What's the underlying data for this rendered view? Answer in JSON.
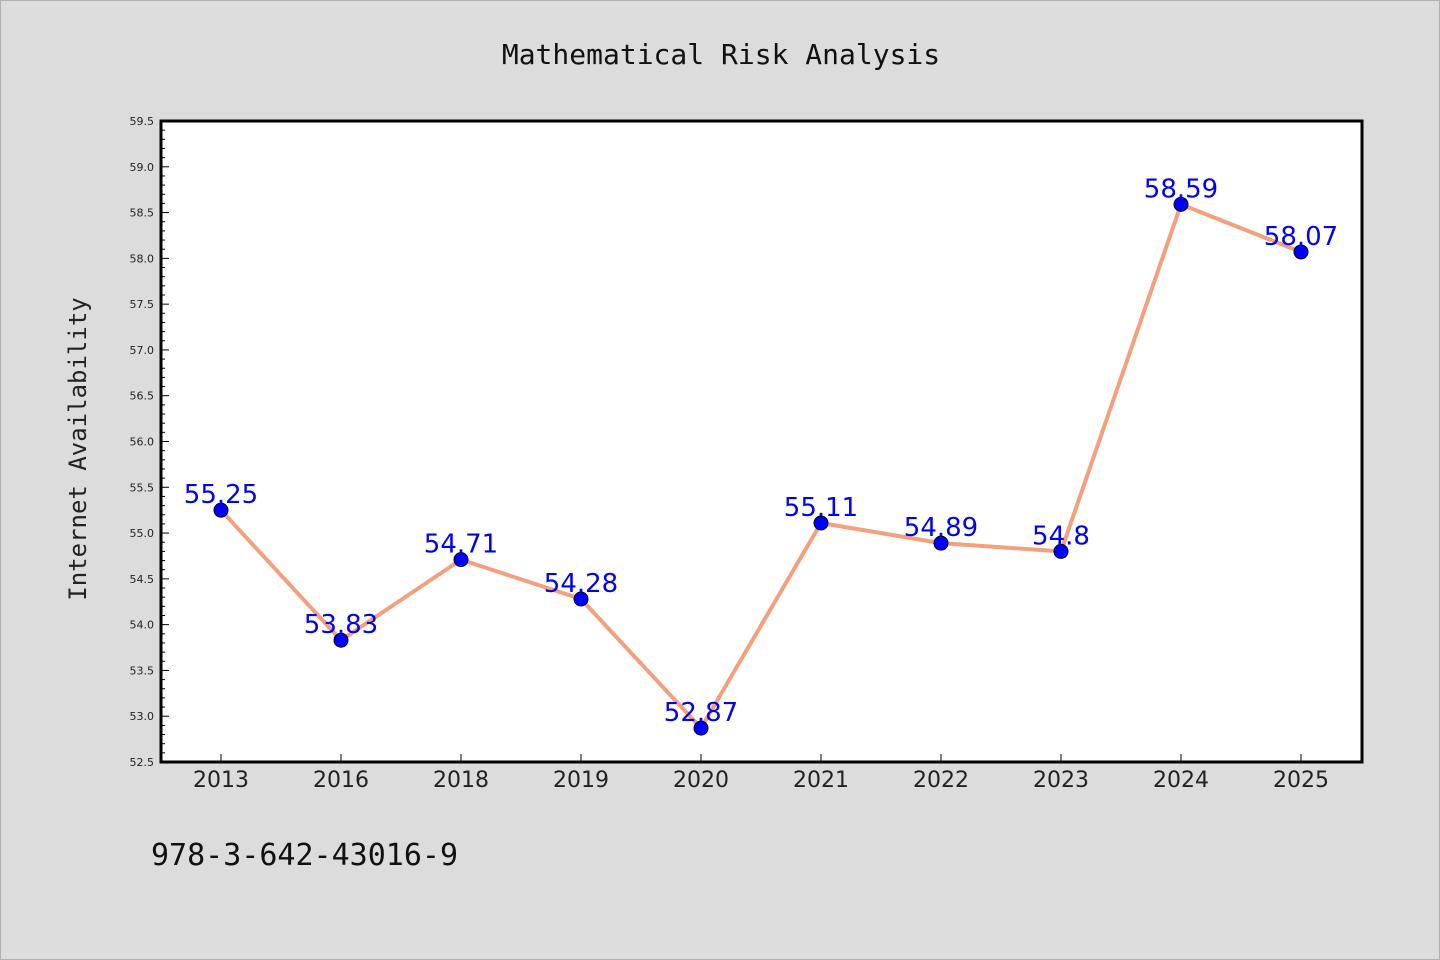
{
  "colors": {
    "background": "#dcdcdc",
    "plot_background": "#ffffff",
    "line": "#f4a07e",
    "marker": "#0000ff",
    "data_label": "#0000ff"
  },
  "footer": {
    "isbn": "978-3-642-43016-9"
  },
  "chart_data": {
    "type": "line",
    "title": "Mathematical Risk Analysis",
    "xlabel": "",
    "ylabel": "Internet Availability",
    "categories": [
      "2013",
      "2016",
      "2018",
      "2019",
      "2020",
      "2021",
      "2022",
      "2023",
      "2024",
      "2025"
    ],
    "series": [
      {
        "values": [
          55.25,
          53.83,
          54.71,
          54.28,
          52.87,
          55.11,
          54.89,
          54.8,
          58.59,
          58.07
        ],
        "labels": [
          "55.25",
          "53.83",
          "54.71",
          "54.28",
          "52.87",
          "55.11",
          "54.89",
          "54.8",
          "58.59",
          "58.07"
        ]
      }
    ],
    "ylim": [
      52.5,
      59.5
    ],
    "yticks": [
      "52.5",
      "53.0",
      "53.5",
      "54.0",
      "54.5",
      "55.0",
      "55.5",
      "56.0",
      "56.5",
      "57.0",
      "57.5",
      "58.0",
      "58.5",
      "59.0",
      "59.5"
    ],
    "grid": false,
    "legend": "none"
  }
}
